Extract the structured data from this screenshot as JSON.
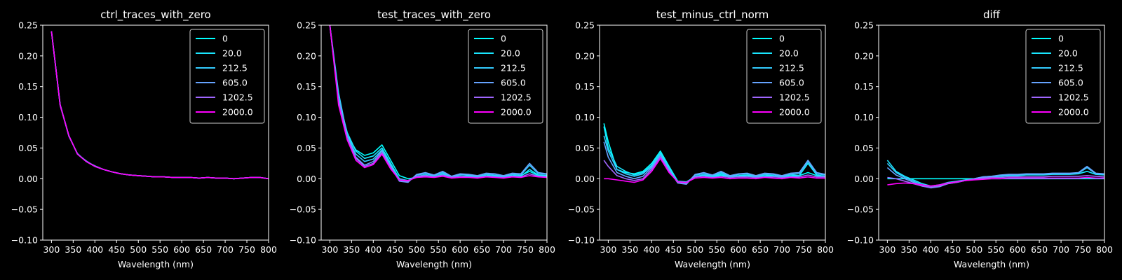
{
  "chart_data": [
    {
      "type": "line",
      "title": "ctrl_traces_with_zero",
      "xlabel": "Wavelength (nm)",
      "ylabel": "",
      "xlim": [
        280,
        800
      ],
      "ylim": [
        -0.1,
        0.25
      ],
      "xticks": [
        "300",
        "350",
        "400",
        "450",
        "500",
        "550",
        "600",
        "650",
        "700",
        "750",
        "800"
      ],
      "yticks": [
        "−0.10",
        "−0.05",
        "0.00",
        "0.05",
        "0.10",
        "0.15",
        "0.20",
        "0.25"
      ],
      "legend_position": "top-right",
      "x": [
        300,
        320,
        340,
        360,
        380,
        400,
        420,
        440,
        460,
        480,
        500,
        520,
        540,
        560,
        580,
        600,
        620,
        640,
        660,
        680,
        700,
        720,
        740,
        760,
        780,
        800
      ],
      "series": [
        {
          "name": "0",
          "color": "#00ffff",
          "values": [
            0.24,
            0.12,
            0.07,
            0.04,
            0.028,
            0.02,
            0.015,
            0.011,
            0.008,
            0.006,
            0.005,
            0.004,
            0.003,
            0.003,
            0.002,
            0.002,
            0.002,
            0.001,
            0.002,
            0.001,
            0.001,
            0.0,
            0.001,
            0.002,
            0.002,
            0.0
          ]
        },
        {
          "name": "20.0",
          "color": "#19e6ff",
          "values": [
            0.24,
            0.121,
            0.069,
            0.041,
            0.028,
            0.02,
            0.015,
            0.011,
            0.008,
            0.006,
            0.005,
            0.004,
            0.003,
            0.003,
            0.002,
            0.002,
            0.002,
            0.001,
            0.002,
            0.001,
            0.001,
            0.0,
            0.001,
            0.002,
            0.002,
            0.0
          ]
        },
        {
          "name": "212.5",
          "color": "#33ccff",
          "values": [
            0.24,
            0.12,
            0.07,
            0.04,
            0.029,
            0.02,
            0.015,
            0.011,
            0.008,
            0.006,
            0.005,
            0.004,
            0.003,
            0.003,
            0.002,
            0.002,
            0.002,
            0.001,
            0.002,
            0.001,
            0.001,
            0.0,
            0.001,
            0.002,
            0.002,
            0.0
          ]
        },
        {
          "name": "605.0",
          "color": "#66a3ff",
          "values": [
            0.24,
            0.12,
            0.07,
            0.04,
            0.028,
            0.021,
            0.015,
            0.011,
            0.008,
            0.006,
            0.005,
            0.004,
            0.003,
            0.003,
            0.002,
            0.002,
            0.002,
            0.001,
            0.002,
            0.001,
            0.001,
            0.0,
            0.001,
            0.002,
            0.002,
            0.0
          ]
        },
        {
          "name": "1202.5",
          "color": "#a066ff",
          "values": [
            0.24,
            0.119,
            0.07,
            0.04,
            0.028,
            0.02,
            0.015,
            0.011,
            0.008,
            0.006,
            0.005,
            0.004,
            0.003,
            0.003,
            0.002,
            0.002,
            0.002,
            0.001,
            0.002,
            0.001,
            0.001,
            0.0,
            0.001,
            0.002,
            0.002,
            0.0
          ]
        },
        {
          "name": "2000.0",
          "color": "#ff00ff",
          "values": [
            0.24,
            0.12,
            0.07,
            0.04,
            0.028,
            0.02,
            0.015,
            0.011,
            0.008,
            0.006,
            0.005,
            0.004,
            0.003,
            0.003,
            0.002,
            0.002,
            0.002,
            0.001,
            0.002,
            0.001,
            0.001,
            0.0,
            0.001,
            0.002,
            0.002,
            0.0
          ]
        }
      ]
    },
    {
      "type": "line",
      "title": "test_traces_with_zero",
      "xlabel": "Wavelength (nm)",
      "ylabel": "",
      "xlim": [
        280,
        800
      ],
      "ylim": [
        -0.1,
        0.25
      ],
      "xticks": [
        "300",
        "350",
        "400",
        "450",
        "500",
        "550",
        "600",
        "650",
        "700",
        "750",
        "800"
      ],
      "yticks": [
        "−0.10",
        "−0.05",
        "0.00",
        "0.05",
        "0.10",
        "0.15",
        "0.20",
        "0.25"
      ],
      "legend_position": "top-right",
      "x": [
        300,
        320,
        340,
        360,
        380,
        400,
        420,
        440,
        460,
        480,
        500,
        520,
        540,
        560,
        580,
        600,
        620,
        640,
        660,
        680,
        700,
        720,
        740,
        760,
        780,
        800
      ],
      "series": [
        {
          "name": "0",
          "color": "#00ffff",
          "values": [
            0.25,
            0.13,
            0.07,
            0.047,
            0.038,
            0.042,
            0.055,
            0.03,
            0.005,
            0.0,
            0.002,
            0.005,
            0.004,
            0.006,
            0.003,
            0.004,
            0.005,
            0.003,
            0.004,
            0.005,
            0.003,
            0.004,
            0.005,
            0.012,
            0.005,
            0.004
          ]
        },
        {
          "name": "20.0",
          "color": "#19e6ff",
          "values": [
            0.25,
            0.13,
            0.075,
            0.045,
            0.033,
            0.037,
            0.05,
            0.025,
            0.0,
            -0.003,
            0.004,
            0.006,
            0.003,
            0.008,
            0.002,
            0.005,
            0.004,
            0.002,
            0.006,
            0.004,
            0.002,
            0.006,
            0.004,
            0.015,
            0.006,
            0.005
          ]
        },
        {
          "name": "212.5",
          "color": "#33ccff",
          "values": [
            0.25,
            0.14,
            0.07,
            0.04,
            0.028,
            0.032,
            0.047,
            0.022,
            -0.002,
            -0.005,
            0.006,
            0.008,
            0.005,
            0.01,
            0.003,
            0.007,
            0.006,
            0.004,
            0.007,
            0.006,
            0.004,
            0.007,
            0.006,
            0.022,
            0.008,
            0.007
          ]
        },
        {
          "name": "605.0",
          "color": "#66a3ff",
          "values": [
            0.25,
            0.13,
            0.07,
            0.035,
            0.022,
            0.028,
            0.045,
            0.02,
            -0.004,
            -0.006,
            0.007,
            0.01,
            0.006,
            0.012,
            0.004,
            0.008,
            0.007,
            0.005,
            0.009,
            0.008,
            0.005,
            0.009,
            0.008,
            0.025,
            0.01,
            0.008
          ]
        },
        {
          "name": "1202.5",
          "color": "#a066ff",
          "values": [
            0.25,
            0.125,
            0.065,
            0.033,
            0.02,
            0.025,
            0.042,
            0.018,
            -0.003,
            -0.004,
            0.004,
            0.005,
            0.003,
            0.006,
            0.002,
            0.004,
            0.003,
            0.002,
            0.004,
            0.003,
            0.002,
            0.004,
            0.003,
            0.008,
            0.004,
            0.003
          ]
        },
        {
          "name": "2000.0",
          "color": "#ff00ff",
          "values": [
            0.25,
            0.12,
            0.063,
            0.03,
            0.018,
            0.023,
            0.04,
            0.016,
            -0.002,
            -0.003,
            0.002,
            0.003,
            0.002,
            0.004,
            0.001,
            0.002,
            0.002,
            0.001,
            0.003,
            0.002,
            0.001,
            0.003,
            0.002,
            0.005,
            0.003,
            0.002
          ]
        }
      ]
    },
    {
      "type": "line",
      "title": "test_minus_ctrl_norm",
      "xlabel": "Wavelength (nm)",
      "ylabel": "",
      "xlim": [
        280,
        800
      ],
      "ylim": [
        -0.1,
        0.25
      ],
      "xticks": [
        "300",
        "350",
        "400",
        "450",
        "500",
        "550",
        "600",
        "650",
        "700",
        "750",
        "800"
      ],
      "yticks": [
        "−0.10",
        "−0.05",
        "0.00",
        "0.05",
        "0.10",
        "0.15",
        "0.20",
        "0.25"
      ],
      "legend_position": "top-right",
      "x": [
        290,
        300,
        320,
        340,
        360,
        380,
        400,
        420,
        440,
        460,
        480,
        500,
        520,
        540,
        560,
        580,
        600,
        620,
        640,
        660,
        680,
        700,
        720,
        740,
        760,
        780,
        800
      ],
      "series": [
        {
          "name": "0",
          "color": "#00ffff",
          "values": [
            0.09,
            0.06,
            0.015,
            0.01,
            0.008,
            0.012,
            0.025,
            0.045,
            0.02,
            -0.004,
            -0.005,
            0.003,
            0.005,
            0.003,
            0.006,
            0.002,
            0.004,
            0.005,
            0.002,
            0.004,
            0.005,
            0.002,
            0.004,
            0.005,
            0.01,
            0.005,
            0.003
          ]
        },
        {
          "name": "20.0",
          "color": "#19e6ff",
          "values": [
            0.085,
            0.05,
            0.02,
            0.012,
            0.006,
            0.01,
            0.022,
            0.042,
            0.018,
            -0.005,
            -0.006,
            0.004,
            0.006,
            0.004,
            0.008,
            0.003,
            0.005,
            0.006,
            0.003,
            0.006,
            0.005,
            0.003,
            0.006,
            0.005,
            0.025,
            0.006,
            0.004
          ]
        },
        {
          "name": "212.5",
          "color": "#33ccff",
          "values": [
            0.07,
            0.045,
            0.015,
            0.008,
            0.004,
            0.008,
            0.02,
            0.04,
            0.016,
            -0.006,
            -0.008,
            0.006,
            0.008,
            0.005,
            0.01,
            0.004,
            0.007,
            0.008,
            0.004,
            0.007,
            0.007,
            0.004,
            0.007,
            0.008,
            0.028,
            0.008,
            0.006
          ]
        },
        {
          "name": "605.0",
          "color": "#66a3ff",
          "values": [
            0.06,
            0.035,
            0.01,
            0.004,
            0.0,
            0.004,
            0.018,
            0.038,
            0.014,
            -0.007,
            -0.009,
            0.007,
            0.01,
            0.006,
            0.012,
            0.005,
            0.008,
            0.009,
            0.005,
            0.009,
            0.008,
            0.005,
            0.009,
            0.01,
            0.03,
            0.01,
            0.007
          ]
        },
        {
          "name": "1202.5",
          "color": "#a066ff",
          "values": [
            0.03,
            0.02,
            0.005,
            0.0,
            -0.003,
            0.0,
            0.015,
            0.035,
            0.012,
            -0.006,
            -0.007,
            0.003,
            0.004,
            0.002,
            0.004,
            0.002,
            0.003,
            0.003,
            0.002,
            0.003,
            0.003,
            0.002,
            0.003,
            0.003,
            0.006,
            0.003,
            0.003
          ]
        },
        {
          "name": "2000.0",
          "color": "#ff00ff",
          "values": [
            0.0,
            0.0,
            -0.002,
            -0.004,
            -0.006,
            -0.002,
            0.012,
            0.033,
            0.01,
            -0.005,
            -0.006,
            0.001,
            0.002,
            0.001,
            0.002,
            0.0,
            0.001,
            0.001,
            0.0,
            0.002,
            0.001,
            0.0,
            0.002,
            0.001,
            0.003,
            0.001,
            0.001
          ]
        }
      ]
    },
    {
      "type": "line",
      "title": "diff",
      "xlabel": "Wavelength (nm)",
      "ylabel": "",
      "xlim": [
        280,
        800
      ],
      "ylim": [
        -0.1,
        0.25
      ],
      "xticks": [
        "300",
        "350",
        "400",
        "450",
        "500",
        "550",
        "600",
        "650",
        "700",
        "750",
        "800"
      ],
      "yticks": [
        "−0.10",
        "−0.05",
        "0.00",
        "0.05",
        "0.10",
        "0.15",
        "0.20",
        "0.25"
      ],
      "legend_position": "top-right",
      "x": [
        300,
        320,
        340,
        360,
        380,
        400,
        420,
        440,
        460,
        480,
        500,
        520,
        540,
        560,
        580,
        600,
        620,
        640,
        660,
        680,
        700,
        720,
        740,
        760,
        780,
        800
      ],
      "series": [
        {
          "name": "0",
          "color": "#00ffff",
          "values": [
            0.0,
            0.0,
            0.0,
            0.0,
            0.0,
            0.0,
            0.0,
            0.0,
            0.0,
            0.0,
            0.0,
            0.0,
            0.0,
            0.0,
            0.0,
            0.0,
            0.0,
            0.0,
            0.0,
            0.0,
            0.0,
            0.0,
            0.0,
            0.0,
            0.0,
            0.0
          ]
        },
        {
          "name": "20.0",
          "color": "#19e6ff",
          "values": [
            0.03,
            0.012,
            0.004,
            -0.002,
            -0.008,
            -0.012,
            -0.01,
            -0.006,
            -0.004,
            -0.002,
            0.0,
            0.002,
            0.003,
            0.004,
            0.005,
            0.005,
            0.006,
            0.006,
            0.006,
            0.007,
            0.007,
            0.007,
            0.008,
            0.012,
            0.007,
            0.006
          ]
        },
        {
          "name": "212.5",
          "color": "#33ccff",
          "values": [
            0.025,
            0.01,
            0.002,
            -0.004,
            -0.01,
            -0.014,
            -0.012,
            -0.007,
            -0.005,
            -0.002,
            0.0,
            0.003,
            0.004,
            0.005,
            0.006,
            0.006,
            0.007,
            0.007,
            0.007,
            0.008,
            0.008,
            0.008,
            0.009,
            0.018,
            0.008,
            0.007
          ]
        },
        {
          "name": "605.0",
          "color": "#66a3ff",
          "values": [
            0.018,
            0.006,
            0.0,
            -0.006,
            -0.012,
            -0.015,
            -0.013,
            -0.008,
            -0.006,
            -0.003,
            0.0,
            0.003,
            0.004,
            0.006,
            0.007,
            0.007,
            0.008,
            0.008,
            0.008,
            0.009,
            0.009,
            0.009,
            0.01,
            0.02,
            0.009,
            0.008
          ]
        },
        {
          "name": "1202.5",
          "color": "#a066ff",
          "values": [
            0.002,
            0.0,
            -0.004,
            -0.008,
            -0.012,
            -0.014,
            -0.012,
            -0.008,
            -0.006,
            -0.003,
            -0.001,
            0.001,
            0.002,
            0.002,
            0.003,
            0.003,
            0.003,
            0.003,
            0.003,
            0.004,
            0.004,
            0.004,
            0.004,
            0.005,
            0.004,
            0.003
          ]
        },
        {
          "name": "2000.0",
          "color": "#ff00ff",
          "values": [
            -0.01,
            -0.008,
            -0.007,
            -0.008,
            -0.01,
            -0.012,
            -0.01,
            -0.007,
            -0.005,
            -0.003,
            -0.002,
            -0.001,
            0.0,
            0.0,
            0.001,
            0.001,
            0.001,
            0.001,
            0.001,
            0.001,
            0.001,
            0.001,
            0.001,
            0.002,
            0.001,
            0.001
          ]
        }
      ]
    }
  ]
}
